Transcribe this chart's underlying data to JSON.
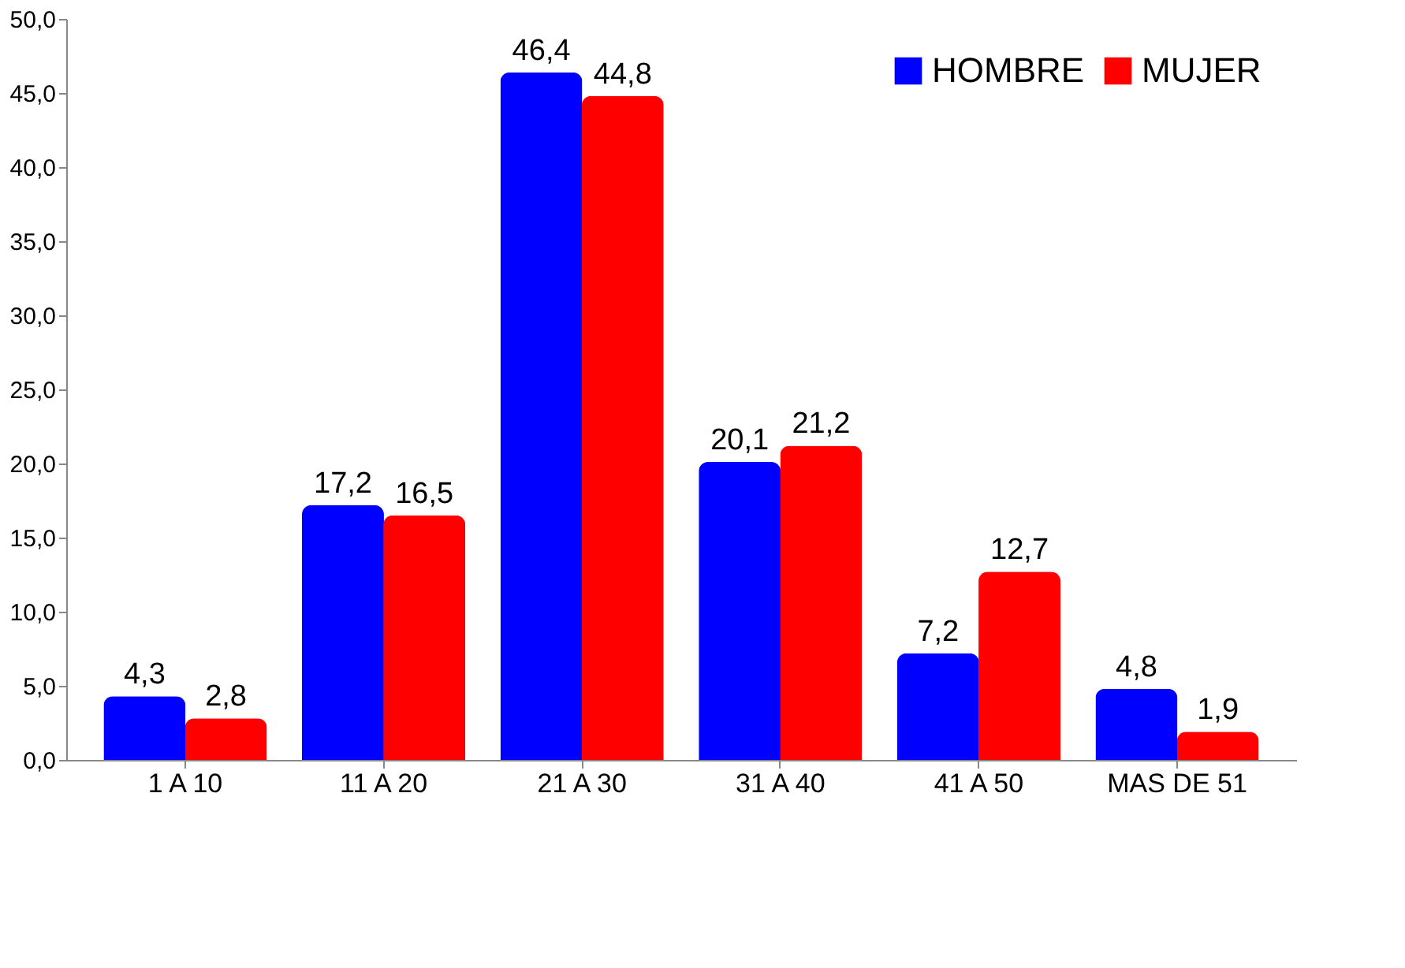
{
  "chart_data": {
    "type": "bar",
    "categories": [
      "1 A 10",
      "11 A 20",
      "21 A 30",
      "31 A 40",
      "41 A 50",
      "MAS DE 51"
    ],
    "series": [
      {
        "name": "HOMBRE",
        "color": "#0000ff",
        "values": [
          4.3,
          17.2,
          46.4,
          20.1,
          7.2,
          4.8
        ],
        "value_labels": [
          "4,3",
          "17,2",
          "46,4",
          "20,1",
          "7,2",
          "4,8"
        ]
      },
      {
        "name": "MUJER",
        "color": "#ff0000",
        "values": [
          2.8,
          16.5,
          44.8,
          21.2,
          12.7,
          1.9
        ],
        "value_labels": [
          "2,8",
          "16,5",
          "44,8",
          "21,2",
          "12,7",
          "1,9"
        ]
      }
    ],
    "ylim": [
      0,
      50
    ],
    "yticks": [
      {
        "value": 0,
        "label": "0,0"
      },
      {
        "value": 5,
        "label": "5,0"
      },
      {
        "value": 10,
        "label": "10,0"
      },
      {
        "value": 15,
        "label": "15,0"
      },
      {
        "value": 20,
        "label": "20,0"
      },
      {
        "value": 25,
        "label": "25,0"
      },
      {
        "value": 30,
        "label": "30,0"
      },
      {
        "value": 35,
        "label": "35,0"
      },
      {
        "value": 40,
        "label": "40,0"
      },
      {
        "value": 45,
        "label": "45,0"
      },
      {
        "value": 50,
        "label": "50,0"
      }
    ],
    "grid": false,
    "legend": "top right"
  }
}
